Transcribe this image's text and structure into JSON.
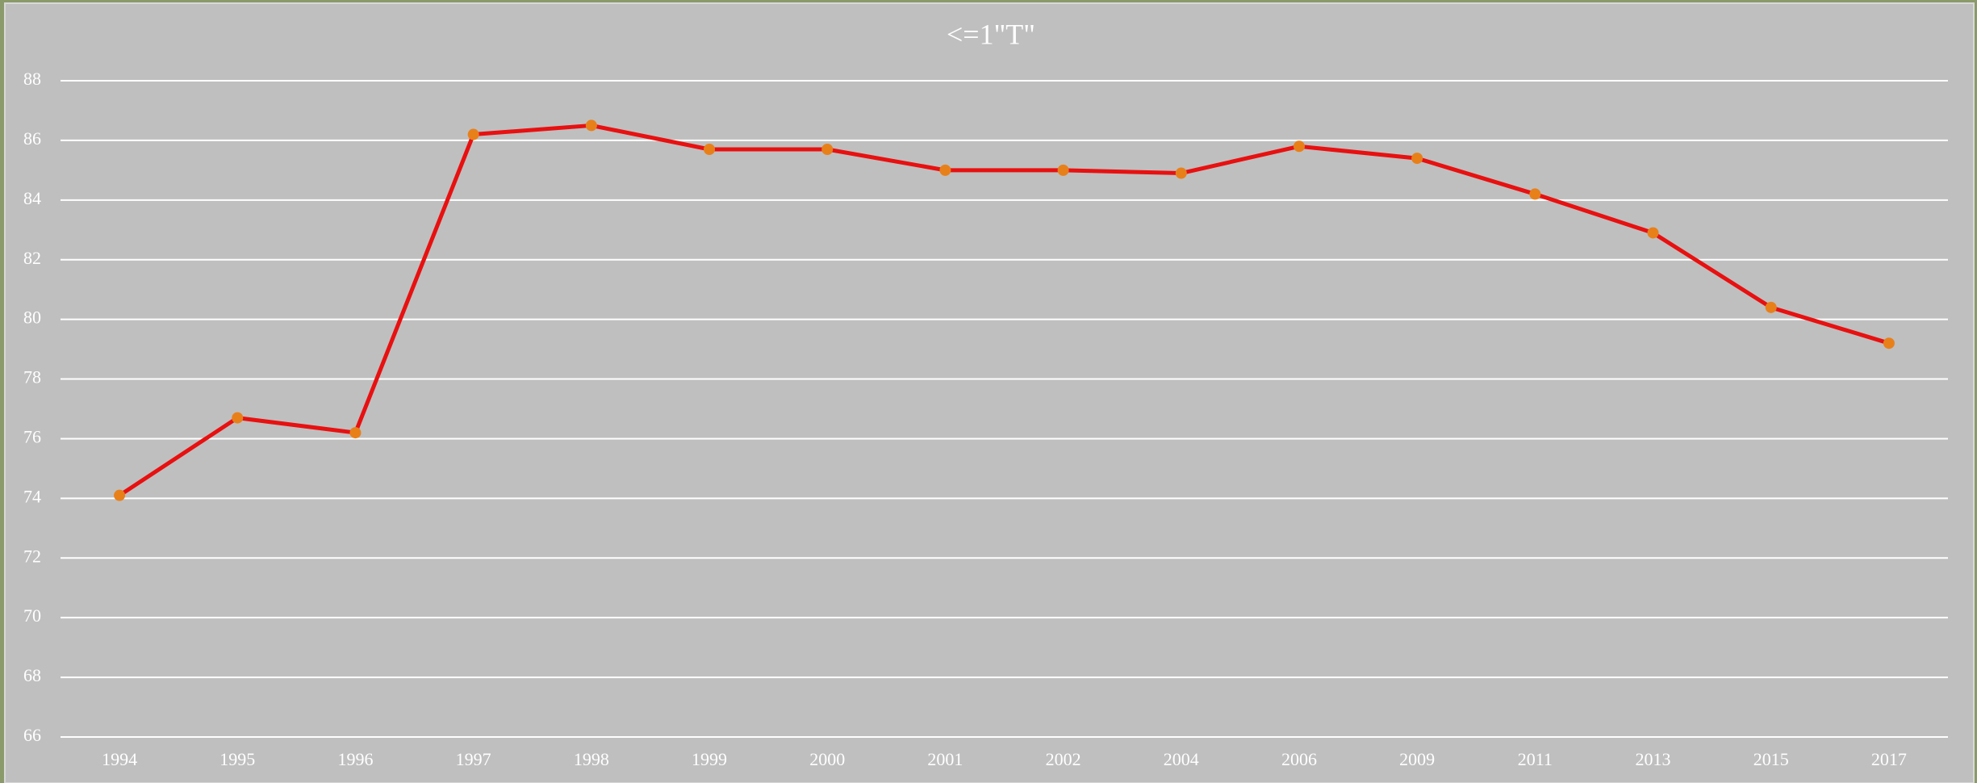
{
  "chart_data": {
    "type": "line",
    "title": "<=1\"T\"",
    "categories": [
      "1994",
      "1995",
      "1996",
      "1997",
      "1998",
      "1999",
      "2000",
      "2001",
      "2002",
      "2004",
      "2006",
      "2009",
      "2011",
      "2013",
      "2015",
      "2017"
    ],
    "series": [
      {
        "name": "<=1\"T\"",
        "color": "#e81010",
        "marker_color": "#e8801a",
        "values": [
          74.1,
          76.7,
          76.2,
          86.2,
          86.5,
          85.7,
          85.7,
          85.0,
          85.0,
          84.9,
          85.8,
          85.4,
          84.2,
          82.9,
          80.4,
          79.2
        ]
      }
    ],
    "ylim": [
      66,
      88
    ],
    "yticks": [
      66,
      68,
      70,
      72,
      74,
      76,
      78,
      80,
      82,
      84,
      86,
      88
    ],
    "grid": true
  }
}
